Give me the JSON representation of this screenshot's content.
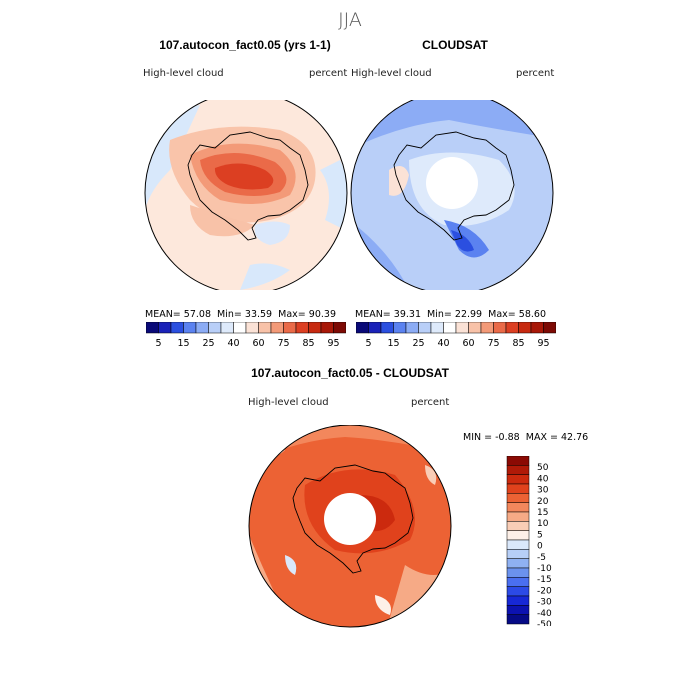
{
  "figure": {
    "title": "JJA"
  },
  "panels": [
    {
      "title": "107.autocon_fact0.05 (yrs 1-1)",
      "variable": "High-level cloud",
      "units": "percent",
      "stats": {
        "mean_label": "MEAN=",
        "mean": "57.08",
        "min_label": "Min=",
        "min": "33.59",
        "max_label": "Max=",
        "max": "90.39"
      }
    },
    {
      "title": "CLOUDSAT",
      "variable": "High-level cloud",
      "units": "percent",
      "stats": {
        "mean_label": "MEAN=",
        "mean": "39.31",
        "min_label": "Min=",
        "min": "22.99",
        "max_label": "Max=",
        "max": "58.60"
      }
    },
    {
      "title": "107.autocon_fact0.05 - CLOUDSAT",
      "variable": "High-level cloud",
      "units": "percent",
      "stats": {
        "min_label": "MIN =",
        "min": "-0.88",
        "max_label": "MAX =",
        "max": "42.76"
      }
    }
  ],
  "colorbar_abs": {
    "tick_labels": [
      "5",
      "15",
      "25",
      "40",
      "60",
      "75",
      "85",
      "95"
    ],
    "colors": [
      "#0a0a78",
      "#1a22b8",
      "#2b4fe0",
      "#5b82f0",
      "#8cacf5",
      "#b9cff8",
      "#deeafb",
      "#ffffff",
      "#fbe2d6",
      "#f8c2a8",
      "#f39a78",
      "#ea6a48",
      "#dc3f22",
      "#c72a10",
      "#a81808",
      "#7d0a04"
    ]
  },
  "colorbar_diff": {
    "tick_labels": [
      "50",
      "40",
      "30",
      "20",
      "15",
      "10",
      "5",
      "0",
      "-5",
      "-10",
      "-15",
      "-20",
      "-30",
      "-40",
      "-50"
    ],
    "colors": [
      "#8b0a04",
      "#b01a08",
      "#cc2a0e",
      "#e0421c",
      "#ec6234",
      "#f3875c",
      "#f6aa86",
      "#f9cdb6",
      "#fdf0e8",
      "#dae8fb",
      "#b7cff7",
      "#8fb1f2",
      "#6b92ee",
      "#4a6ff0",
      "#2c4ae6",
      "#1728d6",
      "#0c12b0",
      "#060a86"
    ]
  },
  "chart_data": {
    "type": "heatmap",
    "season": "JJA",
    "projection": "south polar stereographic",
    "panels": [
      {
        "name": "107.autocon_fact0.05 (yrs 1-1)",
        "variable": "High-level cloud",
        "units": "percent",
        "mean": 57.08,
        "min": 33.59,
        "max": 90.39,
        "levels": [
          5,
          10,
          15,
          20,
          25,
          30,
          40,
          50,
          60,
          70,
          75,
          80,
          85,
          90,
          95
        ]
      },
      {
        "name": "CLOUDSAT",
        "variable": "High-level cloud",
        "units": "percent",
        "mean": 39.31,
        "min": 22.99,
        "max": 58.6,
        "levels": [
          5,
          10,
          15,
          20,
          25,
          30,
          40,
          50,
          60,
          70,
          75,
          80,
          85,
          90,
          95
        ]
      },
      {
        "name": "107.autocon_fact0.05 - CLOUDSAT",
        "variable": "High-level cloud",
        "units": "percent",
        "min": -0.88,
        "max": 42.76,
        "levels": [
          -50,
          -40,
          -30,
          -20,
          -15,
          -10,
          -5,
          0,
          5,
          10,
          15,
          20,
          30,
          40,
          50
        ]
      }
    ]
  }
}
